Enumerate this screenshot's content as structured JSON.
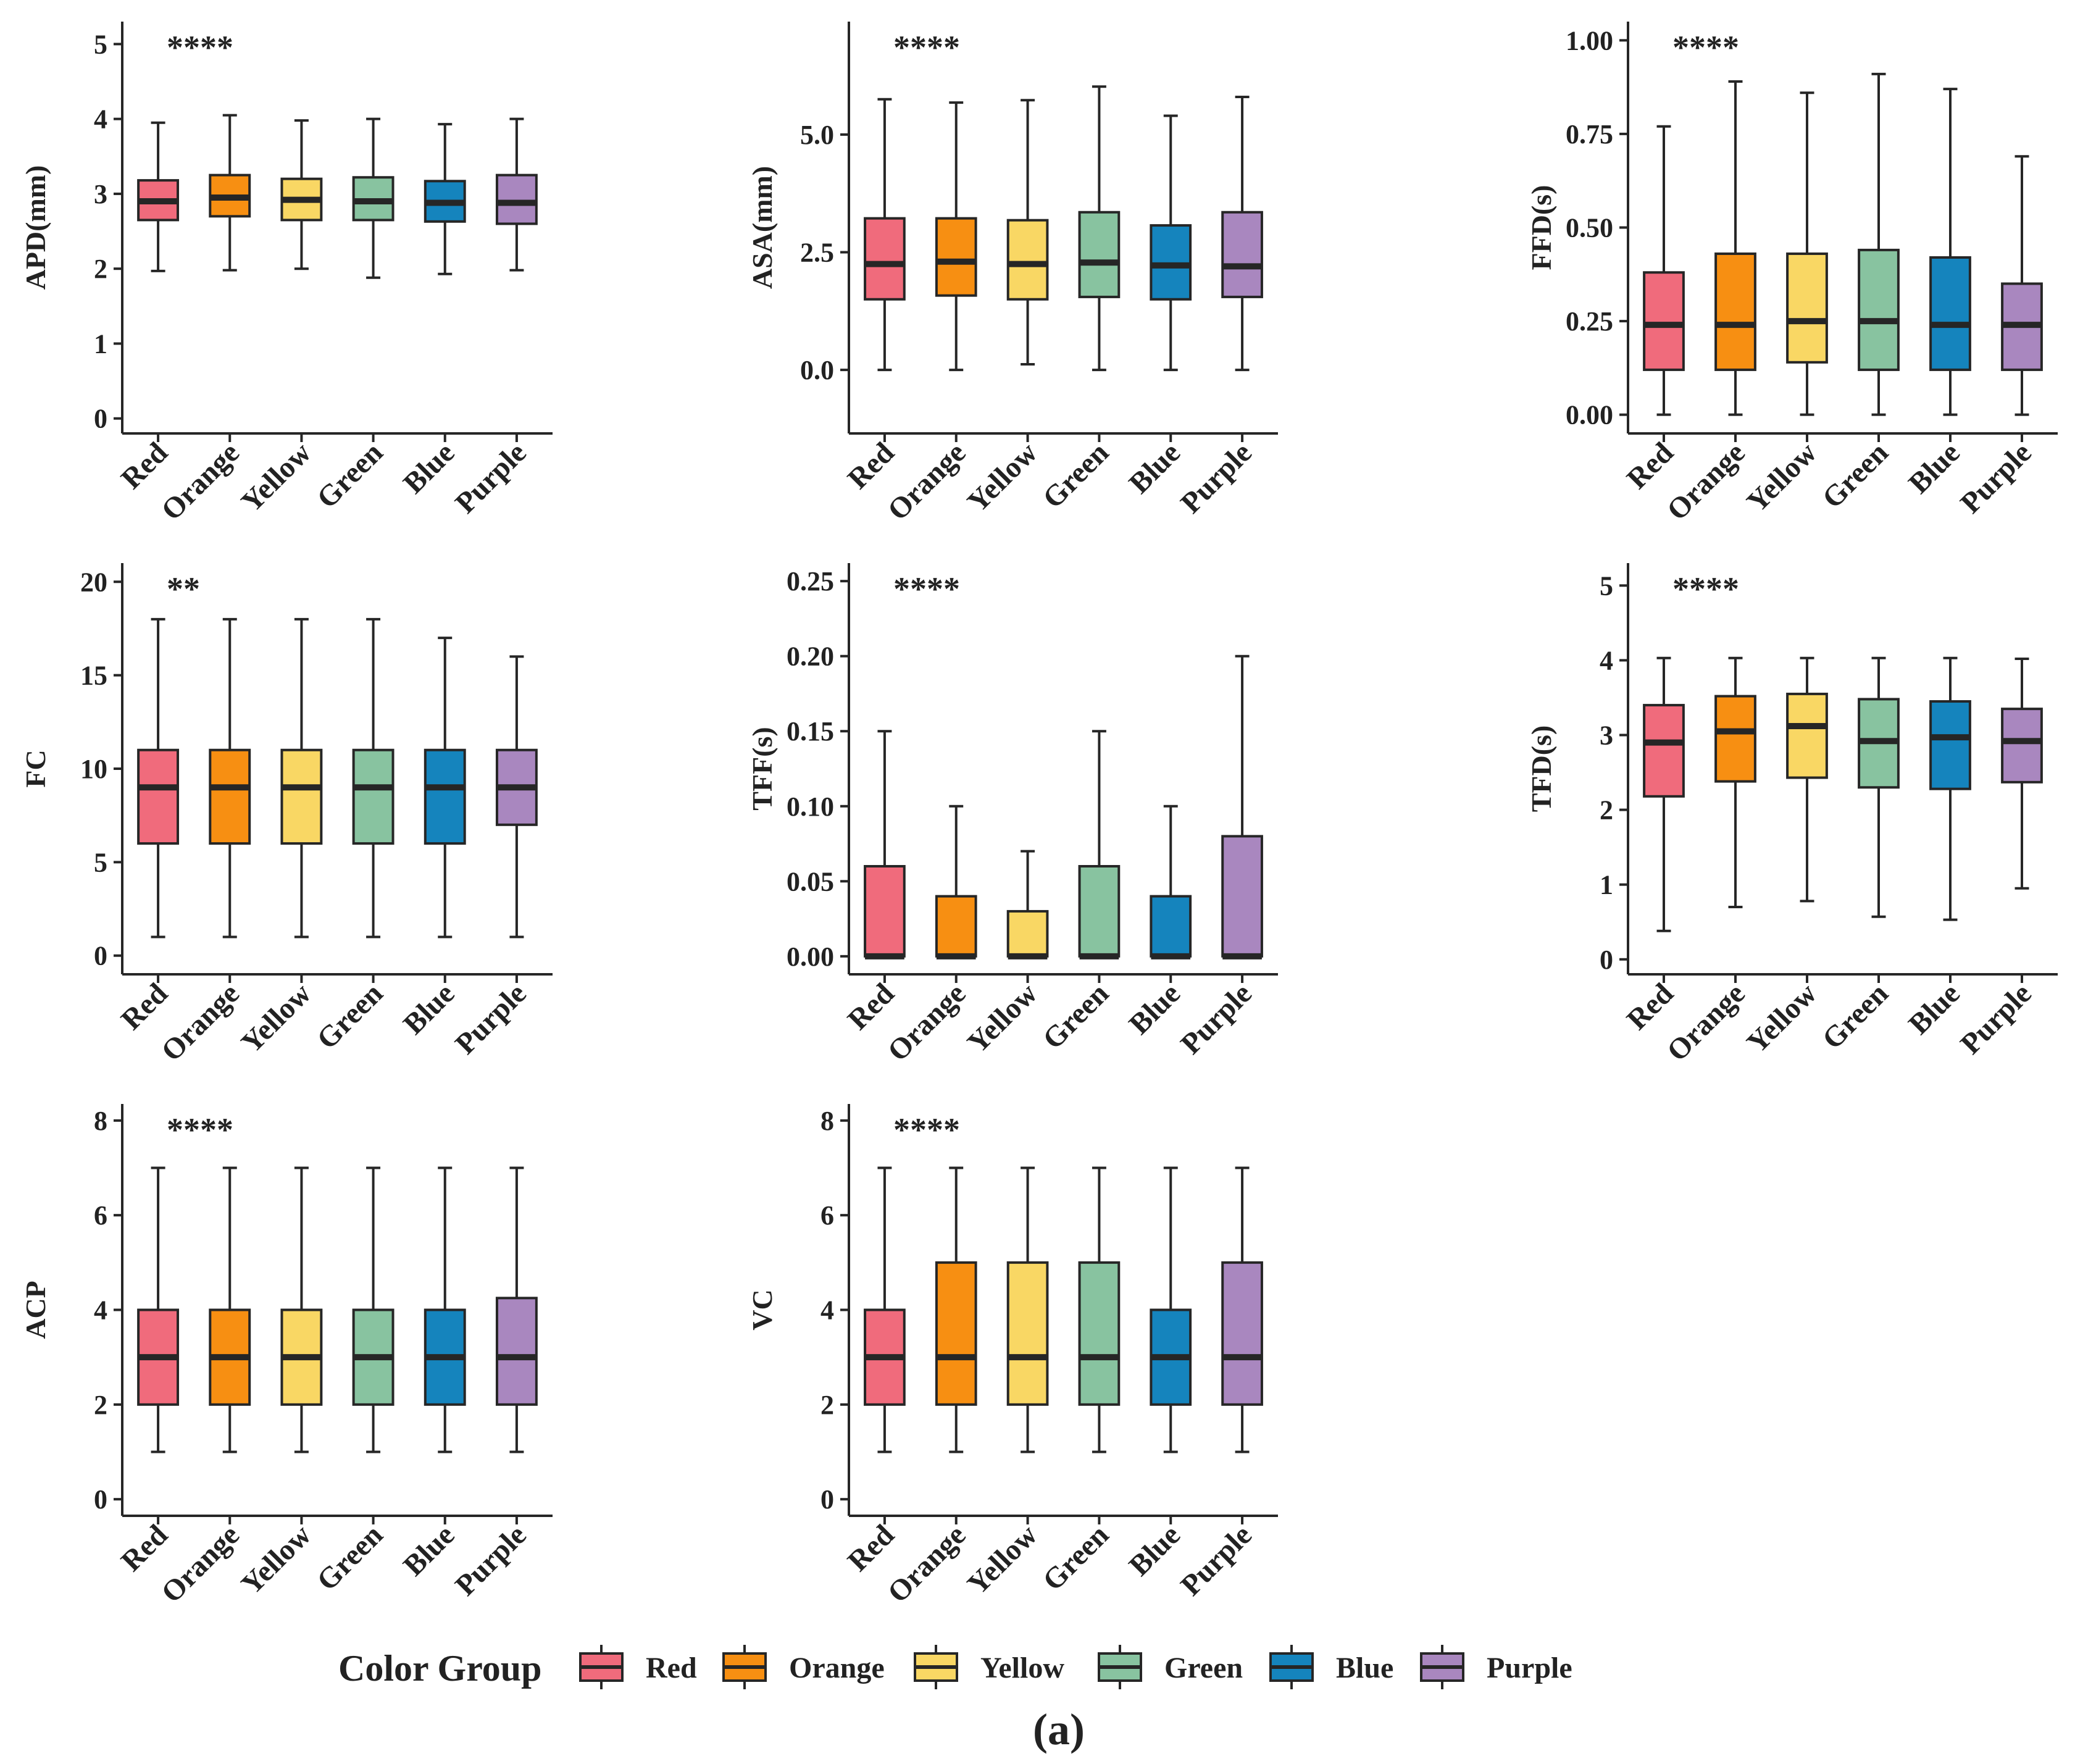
{
  "chart_data": [
    {
      "type": "boxplot",
      "ylabel": "APD(mm)",
      "significance": "****",
      "ylim": [
        -0.2,
        5.3
      ],
      "yticks": [
        0,
        1,
        2,
        3,
        4,
        5
      ],
      "ytick_labels": [
        "0",
        "1",
        "2",
        "3",
        "4",
        "5"
      ],
      "categories": [
        "Red",
        "Orange",
        "Yellow",
        "Green",
        "Blue",
        "Purple"
      ],
      "series": [
        {
          "name": "Red",
          "min": 1.97,
          "q1": 2.65,
          "median": 2.9,
          "q3": 3.18,
          "max": 3.95
        },
        {
          "name": "Orange",
          "min": 1.98,
          "q1": 2.7,
          "median": 2.95,
          "q3": 3.25,
          "max": 4.05
        },
        {
          "name": "Yellow",
          "min": 2.0,
          "q1": 2.65,
          "median": 2.92,
          "q3": 3.2,
          "max": 3.98
        },
        {
          "name": "Green",
          "min": 1.88,
          "q1": 2.65,
          "median": 2.9,
          "q3": 3.22,
          "max": 4.0
        },
        {
          "name": "Blue",
          "min": 1.93,
          "q1": 2.63,
          "median": 2.88,
          "q3": 3.17,
          "max": 3.93
        },
        {
          "name": "Purple",
          "min": 1.98,
          "q1": 2.6,
          "median": 2.88,
          "q3": 3.25,
          "max": 4.0
        }
      ]
    },
    {
      "type": "boxplot",
      "ylabel": "ASA(mm)",
      "significance": "****",
      "ylim": [
        -1.35,
        7.4
      ],
      "yticks": [
        0,
        2.5,
        5
      ],
      "ytick_labels": [
        "0.0",
        "2.5",
        "5.0"
      ],
      "categories": [
        "Red",
        "Orange",
        "Yellow",
        "Green",
        "Blue",
        "Purple"
      ],
      "series": [
        {
          "name": "Red",
          "min": 0.0,
          "q1": 1.5,
          "median": 2.25,
          "q3": 3.22,
          "max": 5.75
        },
        {
          "name": "Orange",
          "min": 0.0,
          "q1": 1.58,
          "median": 2.3,
          "q3": 3.22,
          "max": 5.68
        },
        {
          "name": "Yellow",
          "min": 0.12,
          "q1": 1.5,
          "median": 2.25,
          "q3": 3.18,
          "max": 5.73
        },
        {
          "name": "Green",
          "min": 0.0,
          "q1": 1.55,
          "median": 2.28,
          "q3": 3.35,
          "max": 6.02
        },
        {
          "name": "Blue",
          "min": 0.0,
          "q1": 1.5,
          "median": 2.22,
          "q3": 3.07,
          "max": 5.4
        },
        {
          "name": "Purple",
          "min": 0.0,
          "q1": 1.55,
          "median": 2.2,
          "q3": 3.35,
          "max": 5.8
        }
      ]
    },
    {
      "type": "boxplot",
      "ylabel": "FFD(s)",
      "significance": "****",
      "ylim": [
        -0.05,
        1.05
      ],
      "yticks": [
        0,
        0.25,
        0.5,
        0.75,
        1.0
      ],
      "ytick_labels": [
        "0.00",
        "0.25",
        "0.50",
        "0.75",
        "1.00"
      ],
      "categories": [
        "Red",
        "Orange",
        "Yellow",
        "Green",
        "Blue",
        "Purple"
      ],
      "series": [
        {
          "name": "Red",
          "min": 0.0,
          "q1": 0.12,
          "median": 0.24,
          "q3": 0.38,
          "max": 0.77
        },
        {
          "name": "Orange",
          "min": 0.0,
          "q1": 0.12,
          "median": 0.24,
          "q3": 0.43,
          "max": 0.89
        },
        {
          "name": "Yellow",
          "min": 0.0,
          "q1": 0.14,
          "median": 0.25,
          "q3": 0.43,
          "max": 0.86
        },
        {
          "name": "Green",
          "min": 0.0,
          "q1": 0.12,
          "median": 0.25,
          "q3": 0.44,
          "max": 0.91
        },
        {
          "name": "Blue",
          "min": 0.0,
          "q1": 0.12,
          "median": 0.24,
          "q3": 0.42,
          "max": 0.87
        },
        {
          "name": "Purple",
          "min": 0.0,
          "q1": 0.12,
          "median": 0.24,
          "q3": 0.35,
          "max": 0.69
        }
      ]
    },
    {
      "type": "boxplot",
      "ylabel": "FC",
      "significance": "**",
      "ylim": [
        -1.0,
        21.0
      ],
      "yticks": [
        0,
        5,
        10,
        15,
        20
      ],
      "ytick_labels": [
        "0",
        "5",
        "10",
        "15",
        "20"
      ],
      "categories": [
        "Red",
        "Orange",
        "Yellow",
        "Green",
        "Blue",
        "Purple"
      ],
      "series": [
        {
          "name": "Red",
          "min": 1,
          "q1": 6,
          "median": 9,
          "q3": 11,
          "max": 18
        },
        {
          "name": "Orange",
          "min": 1,
          "q1": 6,
          "median": 9,
          "q3": 11,
          "max": 18
        },
        {
          "name": "Yellow",
          "min": 1,
          "q1": 6,
          "median": 9,
          "q3": 11,
          "max": 18
        },
        {
          "name": "Green",
          "min": 1,
          "q1": 6,
          "median": 9,
          "q3": 11,
          "max": 18
        },
        {
          "name": "Blue",
          "min": 1,
          "q1": 6,
          "median": 9,
          "q3": 11,
          "max": 17
        },
        {
          "name": "Purple",
          "min": 1,
          "q1": 7,
          "median": 9,
          "q3": 11,
          "max": 16
        }
      ]
    },
    {
      "type": "boxplot",
      "ylabel": "TFF(s)",
      "significance": "****",
      "ylim": [
        -0.012,
        0.262
      ],
      "yticks": [
        0,
        0.05,
        0.1,
        0.15,
        0.2,
        0.25
      ],
      "ytick_labels": [
        "0.00",
        "0.05",
        "0.10",
        "0.15",
        "0.20",
        "0.25"
      ],
      "categories": [
        "Red",
        "Orange",
        "Yellow",
        "Green",
        "Blue",
        "Purple"
      ],
      "series": [
        {
          "name": "Red",
          "min": 0,
          "q1": 0,
          "median": 0,
          "q3": 0.06,
          "max": 0.15
        },
        {
          "name": "Orange",
          "min": 0,
          "q1": 0,
          "median": 0,
          "q3": 0.04,
          "max": 0.1
        },
        {
          "name": "Yellow",
          "min": 0,
          "q1": 0,
          "median": 0,
          "q3": 0.03,
          "max": 0.07
        },
        {
          "name": "Green",
          "min": 0,
          "q1": 0,
          "median": 0,
          "q3": 0.06,
          "max": 0.15
        },
        {
          "name": "Blue",
          "min": 0,
          "q1": 0,
          "median": 0,
          "q3": 0.04,
          "max": 0.1
        },
        {
          "name": "Purple",
          "min": 0,
          "q1": 0,
          "median": 0,
          "q3": 0.08,
          "max": 0.2
        }
      ]
    },
    {
      "type": "boxplot",
      "ylabel": "TFD(s)",
      "significance": "****",
      "ylim": [
        -0.2,
        5.3
      ],
      "yticks": [
        0,
        1,
        2,
        3,
        4,
        5
      ],
      "ytick_labels": [
        "0",
        "1",
        "2",
        "3",
        "4",
        "5"
      ],
      "categories": [
        "Red",
        "Orange",
        "Yellow",
        "Green",
        "Blue",
        "Purple"
      ],
      "series": [
        {
          "name": "Red",
          "min": 0.38,
          "q1": 2.18,
          "median": 2.9,
          "q3": 3.4,
          "max": 4.03
        },
        {
          "name": "Orange",
          "min": 0.7,
          "q1": 2.38,
          "median": 3.05,
          "q3": 3.52,
          "max": 4.03
        },
        {
          "name": "Yellow",
          "min": 0.78,
          "q1": 2.43,
          "median": 3.12,
          "q3": 3.55,
          "max": 4.03
        },
        {
          "name": "Green",
          "min": 0.57,
          "q1": 2.3,
          "median": 2.92,
          "q3": 3.48,
          "max": 4.03
        },
        {
          "name": "Blue",
          "min": 0.53,
          "q1": 2.28,
          "median": 2.97,
          "q3": 3.45,
          "max": 4.03
        },
        {
          "name": "Purple",
          "min": 0.95,
          "q1": 2.37,
          "median": 2.92,
          "q3": 3.35,
          "max": 4.02
        }
      ]
    },
    {
      "type": "boxplot",
      "ylabel": "ACP",
      "significance": "****",
      "ylim": [
        -0.35,
        8.35
      ],
      "yticks": [
        0,
        2,
        4,
        6,
        8
      ],
      "ytick_labels": [
        "0",
        "2",
        "4",
        "6",
        "8"
      ],
      "categories": [
        "Red",
        "Orange",
        "Yellow",
        "Green",
        "Blue",
        "Purple"
      ],
      "series": [
        {
          "name": "Red",
          "min": 1,
          "q1": 2,
          "median": 3,
          "q3": 4,
          "max": 7
        },
        {
          "name": "Orange",
          "min": 1,
          "q1": 2,
          "median": 3,
          "q3": 4,
          "max": 7
        },
        {
          "name": "Yellow",
          "min": 1,
          "q1": 2,
          "median": 3,
          "q3": 4,
          "max": 7
        },
        {
          "name": "Green",
          "min": 1,
          "q1": 2,
          "median": 3,
          "q3": 4,
          "max": 7
        },
        {
          "name": "Blue",
          "min": 1,
          "q1": 2,
          "median": 3,
          "q3": 4,
          "max": 7
        },
        {
          "name": "Purple",
          "min": 1,
          "q1": 2,
          "median": 3,
          "q3": 4.25,
          "max": 7
        }
      ]
    },
    {
      "type": "boxplot",
      "ylabel": "VC",
      "significance": "****",
      "ylim": [
        -0.35,
        8.35
      ],
      "yticks": [
        0,
        2,
        4,
        6,
        8
      ],
      "ytick_labels": [
        "0",
        "2",
        "4",
        "6",
        "8"
      ],
      "categories": [
        "Red",
        "Orange",
        "Yellow",
        "Green",
        "Blue",
        "Purple"
      ],
      "series": [
        {
          "name": "Red",
          "min": 1,
          "q1": 2,
          "median": 3,
          "q3": 4,
          "max": 7
        },
        {
          "name": "Orange",
          "min": 1,
          "q1": 2,
          "median": 3,
          "q3": 5,
          "max": 7
        },
        {
          "name": "Yellow",
          "min": 1,
          "q1": 2,
          "median": 3,
          "q3": 5,
          "max": 7
        },
        {
          "name": "Green",
          "min": 1,
          "q1": 2,
          "median": 3,
          "q3": 5,
          "max": 7
        },
        {
          "name": "Blue",
          "min": 1,
          "q1": 2,
          "median": 3,
          "q3": 4,
          "max": 7
        },
        {
          "name": "Purple",
          "min": 1,
          "q1": 2,
          "median": 3,
          "q3": 5,
          "max": 7
        }
      ]
    }
  ],
  "colors": {
    "Red": "#f06b7c",
    "Orange": "#f78f12",
    "Yellow": "#f9d764",
    "Green": "#88c3a0",
    "Blue": "#1584bd",
    "Purple": "#a987bf"
  },
  "legend": {
    "title": "Color Group",
    "items": [
      "Red",
      "Orange",
      "Yellow",
      "Green",
      "Blue",
      "Purple"
    ]
  },
  "caption": "(a)"
}
